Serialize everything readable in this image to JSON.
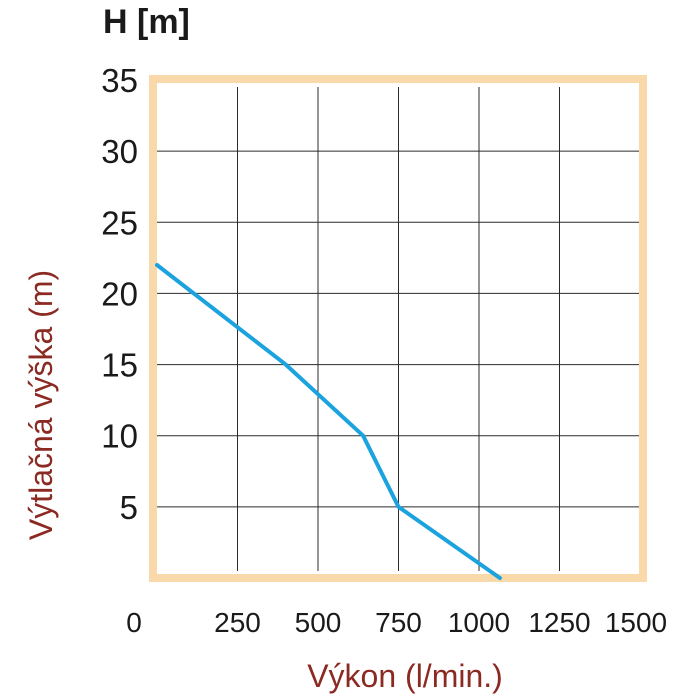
{
  "chart_data": {
    "type": "line",
    "unit_label": "H [m]",
    "xlabel": "Výkon (l/min.)",
    "ylabel": "Výtlačná výška (m)",
    "xlim": [
      0,
      1500
    ],
    "ylim": [
      0,
      35
    ],
    "x_ticks": [
      "0",
      "250",
      "500",
      "750",
      "1000",
      "1250",
      "1500"
    ],
    "y_ticks": [
      "5",
      "10",
      "15",
      "20",
      "25",
      "30",
      "35"
    ],
    "grid": true,
    "series": [
      {
        "x": [
          0,
          400,
          640,
          750,
          1065
        ],
        "y": [
          22,
          15,
          10,
          5,
          0
        ]
      }
    ],
    "colors": {
      "line": "#1aa3de",
      "frame": "#f9d9aa",
      "grid": "#2b2b2b",
      "label": "#8b2a22"
    }
  }
}
